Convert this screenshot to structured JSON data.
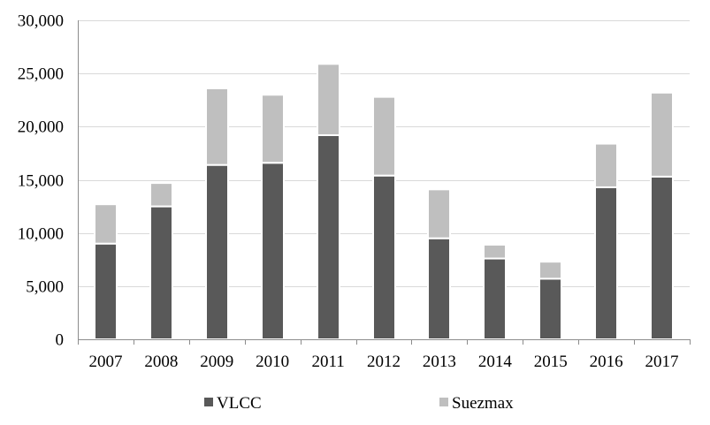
{
  "chart_data": {
    "type": "bar",
    "stacked": true,
    "title": "",
    "xlabel": "",
    "ylabel": "",
    "categories": [
      "2007",
      "2008",
      "2009",
      "2010",
      "2011",
      "2012",
      "2013",
      "2014",
      "2015",
      "2016",
      "2017"
    ],
    "series": [
      {
        "name": "VLCC",
        "color": "#595959",
        "values": [
          9000,
          12500,
          16400,
          16600,
          19200,
          15400,
          9500,
          7600,
          5700,
          14300,
          15300
        ]
      },
      {
        "name": "Suezmax",
        "color": "#bfbfbf",
        "values": [
          3700,
          2200,
          7200,
          6400,
          6700,
          7400,
          4600,
          1300,
          1600,
          4100,
          7900
        ]
      }
    ],
    "ylim": [
      0,
      30000
    ],
    "yticks": [
      0,
      5000,
      10000,
      15000,
      20000,
      25000,
      30000
    ],
    "ytick_labels": [
      "0",
      "5,000",
      "10,000",
      "15,000",
      "20,000",
      "25,000",
      "30,000"
    ],
    "grid": true,
    "gridline_color": "#d9d9d9",
    "axis_color": "#8c8c8c",
    "legend_position": "bottom"
  }
}
